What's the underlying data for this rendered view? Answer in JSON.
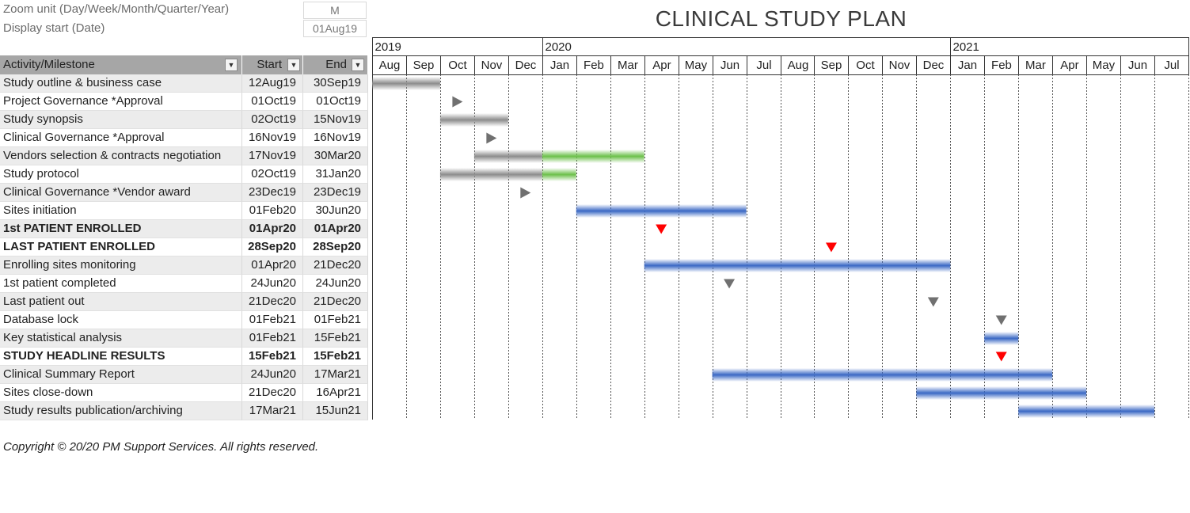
{
  "params": {
    "zoom_label": "Zoom unit (Day/Week/Month/Quarter/Year)",
    "zoom_value": "M",
    "display_start_label": "Display start (Date)",
    "display_start_value": "01Aug19"
  },
  "title": "CLINICAL STUDY PLAN",
  "table": {
    "headers": {
      "activity": "Activity/Milestone",
      "start": "Start",
      "end": "End"
    },
    "filter_icon": "dropdown-arrow-icon",
    "rows": [
      {
        "name": "Study outline & business case",
        "start": "12Aug19",
        "end": "30Sep19",
        "bold": false
      },
      {
        "name": "Project Governance *Approval",
        "start": "01Oct19",
        "end": "01Oct19",
        "bold": false
      },
      {
        "name": "Study synopsis",
        "start": "02Oct19",
        "end": "15Nov19",
        "bold": false
      },
      {
        "name": "Clinical Governance *Approval",
        "start": "16Nov19",
        "end": "16Nov19",
        "bold": false
      },
      {
        "name": "Vendors selection & contracts negotiation",
        "start": "17Nov19",
        "end": "30Mar20",
        "bold": false
      },
      {
        "name": "Study protocol",
        "start": "02Oct19",
        "end": "31Jan20",
        "bold": false
      },
      {
        "name": "Clinical Governance *Vendor award",
        "start": "23Dec19",
        "end": "23Dec19",
        "bold": false
      },
      {
        "name": "Sites initiation",
        "start": "01Feb20",
        "end": "30Jun20",
        "bold": false
      },
      {
        "name": "1st PATIENT ENROLLED",
        "start": "01Apr20",
        "end": "01Apr20",
        "bold": true
      },
      {
        "name": "LAST PATIENT ENROLLED",
        "start": "28Sep20",
        "end": "28Sep20",
        "bold": true
      },
      {
        "name": "Enrolling sites monitoring",
        "start": "01Apr20",
        "end": "21Dec20",
        "bold": false,
        "note": true
      },
      {
        "name": "1st patient completed",
        "start": "24Jun20",
        "end": "24Jun20",
        "bold": false
      },
      {
        "name": "Last patient out",
        "start": "21Dec20",
        "end": "21Dec20",
        "bold": false
      },
      {
        "name": "Database lock",
        "start": "01Feb21",
        "end": "01Feb21",
        "bold": false
      },
      {
        "name": "Key statistical analysis",
        "start": "01Feb21",
        "end": "15Feb21",
        "bold": false,
        "note": true
      },
      {
        "name": "STUDY HEADLINE RESULTS",
        "start": "15Feb21",
        "end": "15Feb21",
        "bold": true
      },
      {
        "name": "Clinical Summary Report",
        "start": "24Jun20",
        "end": "17Mar21",
        "bold": false
      },
      {
        "name": "Sites close-down",
        "start": "21Dec20",
        "end": "16Apr21",
        "bold": false
      },
      {
        "name": "Study results publication/archiving",
        "start": "17Mar21",
        "end": "15Jun21",
        "bold": false,
        "resize": true
      }
    ]
  },
  "timeline": {
    "years": [
      {
        "label": "2019",
        "month_index": 0
      },
      {
        "label": "2020",
        "month_index": 5
      },
      {
        "label": "2021",
        "month_index": 17
      }
    ],
    "months": [
      "Aug",
      "Sep",
      "Oct",
      "Nov",
      "Dec",
      "Jan",
      "Feb",
      "Mar",
      "Apr",
      "May",
      "Jun",
      "Jul",
      "Aug",
      "Sep",
      "Oct",
      "Nov",
      "Dec",
      "Jan",
      "Feb",
      "Mar",
      "Apr",
      "May",
      "Jun",
      "Jul"
    ]
  },
  "bars": [
    {
      "row": 0,
      "segments": [
        {
          "from": 0,
          "to": 2,
          "color": "#8c8c8c"
        }
      ]
    },
    {
      "row": 2,
      "segments": [
        {
          "from": 2,
          "to": 4,
          "color": "#8c8c8c"
        }
      ]
    },
    {
      "row": 4,
      "segments": [
        {
          "from": 3,
          "to": 5,
          "color": "#8c8c8c"
        },
        {
          "from": 5,
          "to": 8,
          "color": "#6cc04a"
        }
      ]
    },
    {
      "row": 5,
      "segments": [
        {
          "from": 2,
          "to": 5,
          "color": "#8c8c8c"
        },
        {
          "from": 5,
          "to": 6,
          "color": "#6cc04a"
        }
      ]
    },
    {
      "row": 7,
      "segments": [
        {
          "from": 6,
          "to": 11,
          "color": "#3a68c4"
        }
      ]
    },
    {
      "row": 10,
      "segments": [
        {
          "from": 8,
          "to": 17,
          "color": "#3a68c4"
        }
      ]
    },
    {
      "row": 14,
      "segments": [
        {
          "from": 18,
          "to": 19,
          "color": "#3a68c4"
        }
      ]
    },
    {
      "row": 16,
      "segments": [
        {
          "from": 10,
          "to": 20,
          "color": "#3a68c4"
        }
      ]
    },
    {
      "row": 17,
      "segments": [
        {
          "from": 16,
          "to": 21,
          "color": "#3a68c4"
        }
      ]
    },
    {
      "row": 18,
      "segments": [
        {
          "from": 19,
          "to": 23,
          "color": "#3a68c4"
        }
      ]
    }
  ],
  "milestones": [
    {
      "row": 1,
      "month": 2.5,
      "shape": "triangle-right",
      "color": "#707070"
    },
    {
      "row": 3,
      "month": 3.5,
      "shape": "triangle-right",
      "color": "#707070"
    },
    {
      "row": 6,
      "month": 4.5,
      "shape": "triangle-right",
      "color": "#707070"
    },
    {
      "row": 8,
      "month": 8.5,
      "shape": "triangle-down",
      "color": "#ff0000"
    },
    {
      "row": 9,
      "month": 13.5,
      "shape": "triangle-down",
      "color": "#ff0000"
    },
    {
      "row": 11,
      "month": 10.5,
      "shape": "triangle-down",
      "color": "#707070"
    },
    {
      "row": 12,
      "month": 16.5,
      "shape": "triangle-down",
      "color": "#707070"
    },
    {
      "row": 13,
      "month": 18.5,
      "shape": "triangle-down",
      "color": "#707070"
    },
    {
      "row": 15,
      "month": 18.5,
      "shape": "triangle-down",
      "color": "#ff0000"
    }
  ],
  "copyright": "Copyright © 20/20 PM Support Services. All rights reserved."
}
